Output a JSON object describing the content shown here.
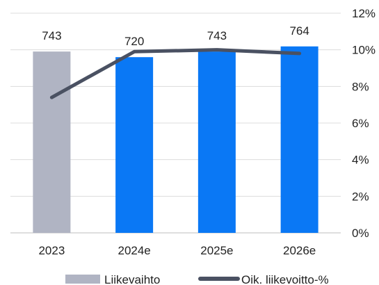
{
  "chart_data": {
    "type": "bar",
    "categories": [
      "2023",
      "2024e",
      "2025e",
      "2026e"
    ],
    "series": [
      {
        "name": "Liikevaihto",
        "type": "bar",
        "values": [
          743,
          720,
          743,
          764
        ],
        "colors": [
          "#b0b4c3",
          "#0a78f5",
          "#0a78f5",
          "#0a78f5"
        ],
        "data_labels": [
          "743",
          "720",
          "743",
          "764"
        ]
      },
      {
        "name": "Oik. liikevoitto-%",
        "type": "line",
        "axis": "right",
        "values": [
          7.4,
          9.9,
          10.0,
          9.8
        ],
        "color": "#4a5162"
      }
    ],
    "y_right": {
      "min": 0,
      "max": 12,
      "ticks": [
        "0%",
        "2%",
        "4%",
        "6%",
        "8%",
        "10%",
        "12%"
      ]
    },
    "bar_axis_max": 900,
    "grid": true,
    "legend": {
      "position": "bottom",
      "items": [
        "Liikevaihto",
        "Oik. liikevoitto-%"
      ]
    }
  }
}
